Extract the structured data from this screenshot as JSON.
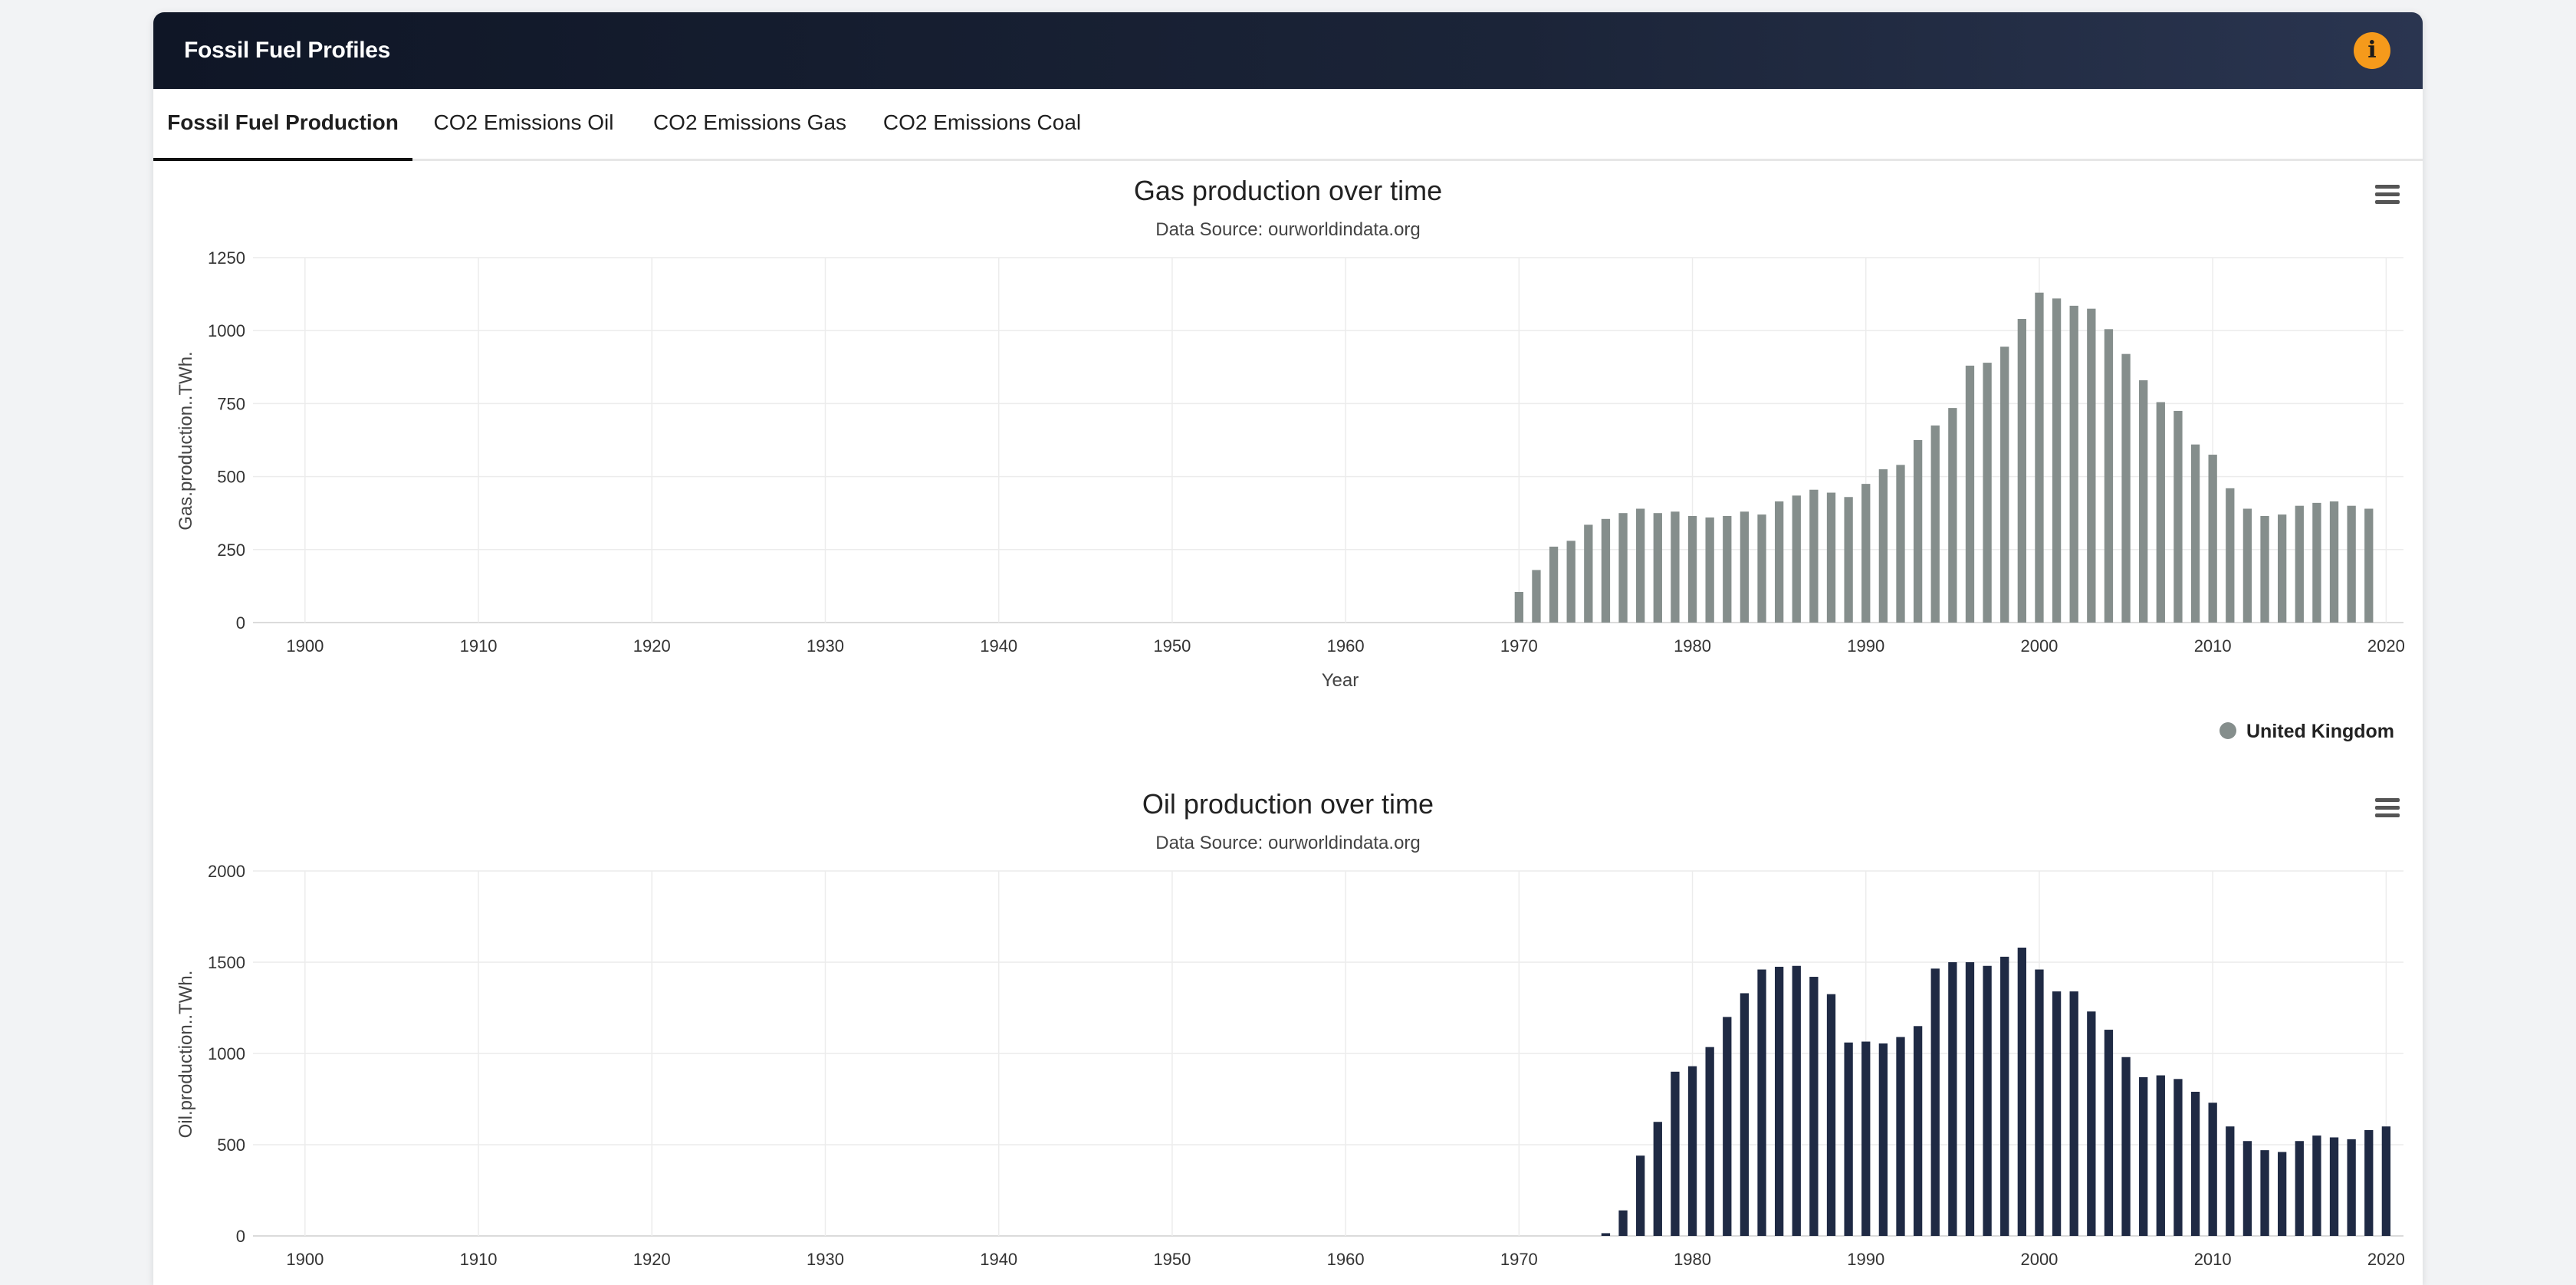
{
  "header": {
    "title": "Fossil Fuel Profiles",
    "info_icon": "info-icon",
    "accent": "#f59a1b"
  },
  "tabs": [
    {
      "label": "Fossil Fuel Production",
      "active": true
    },
    {
      "label": "CO2 Emissions Oil",
      "active": false
    },
    {
      "label": "CO2 Emissions Gas",
      "active": false
    },
    {
      "label": "CO2 Emissions Coal",
      "active": false
    }
  ],
  "chart_data": [
    {
      "type": "bar",
      "title": "Gas production over time",
      "subtitle": "Data Source: ourworldindata.org",
      "xlabel": "Year",
      "ylabel": "Gas.production..TWh.",
      "xlim": [
        1897,
        2021
      ],
      "ylim": [
        0,
        1250
      ],
      "yticks": [
        0,
        250,
        500,
        750,
        1000,
        1250
      ],
      "xticks": [
        1900,
        1910,
        1920,
        1930,
        1940,
        1950,
        1960,
        1970,
        1980,
        1990,
        2000,
        2010,
        2020
      ],
      "color": "#858e8c",
      "legend": "bottom-right",
      "menu_icon": "hamburger-menu-icon",
      "series": [
        {
          "name": "United Kingdom",
          "x": [
            1970,
            1971,
            1972,
            1973,
            1974,
            1975,
            1976,
            1977,
            1978,
            1979,
            1980,
            1981,
            1982,
            1983,
            1984,
            1985,
            1986,
            1987,
            1988,
            1989,
            1990,
            1991,
            1992,
            1993,
            1994,
            1995,
            1996,
            1997,
            1998,
            1999,
            2000,
            2001,
            2002,
            2003,
            2004,
            2005,
            2006,
            2007,
            2008,
            2009,
            2010,
            2011,
            2012,
            2013,
            2014,
            2015,
            2016,
            2017,
            2018,
            2019
          ],
          "values": [
            105,
            180,
            260,
            280,
            335,
            355,
            375,
            390,
            375,
            380,
            365,
            360,
            365,
            380,
            370,
            415,
            435,
            455,
            445,
            430,
            475,
            525,
            540,
            625,
            675,
            735,
            880,
            890,
            945,
            1040,
            1130,
            1110,
            1085,
            1075,
            1005,
            920,
            830,
            755,
            725,
            610,
            575,
            460,
            390,
            365,
            370,
            400,
            410,
            415,
            400,
            390
          ]
        }
      ]
    },
    {
      "type": "bar",
      "title": "Oil production over time",
      "subtitle": "Data Source: ourworldindata.org",
      "xlabel": "",
      "ylabel": "Oil.production..TWh.",
      "xlim": [
        1897,
        2021
      ],
      "ylim": [
        0,
        2000
      ],
      "yticks": [
        0,
        500,
        1000,
        1500,
        2000
      ],
      "xticks": [
        1900,
        1910,
        1920,
        1930,
        1940,
        1950,
        1960,
        1970,
        1980,
        1990,
        2000,
        2010,
        2020
      ],
      "color": "#1f2a44",
      "menu_icon": "hamburger-menu-icon",
      "series": [
        {
          "name": "",
          "x": [
            1975,
            1976,
            1977,
            1978,
            1979,
            1980,
            1981,
            1982,
            1983,
            1984,
            1985,
            1986,
            1987,
            1988,
            1989,
            1990,
            1991,
            1992,
            1993,
            1994,
            1995,
            1996,
            1997,
            1998,
            1999,
            2000,
            2001,
            2002,
            2003,
            2004,
            2005,
            2006,
            2007,
            2008,
            2009,
            2010,
            2011,
            2012,
            2013,
            2014,
            2015,
            2016,
            2017,
            2018,
            2019,
            2020
          ],
          "values": [
            15,
            140,
            440,
            625,
            900,
            930,
            1035,
            1200,
            1330,
            1460,
            1475,
            1480,
            1420,
            1325,
            1060,
            1065,
            1055,
            1090,
            1150,
            1465,
            1500,
            1500,
            1480,
            1530,
            1580,
            1460,
            1340,
            1340,
            1230,
            1130,
            980,
            870,
            880,
            860,
            790,
            730,
            600,
            520,
            470,
            460,
            520,
            550,
            540,
            530,
            580,
            600
          ]
        }
      ]
    }
  ]
}
